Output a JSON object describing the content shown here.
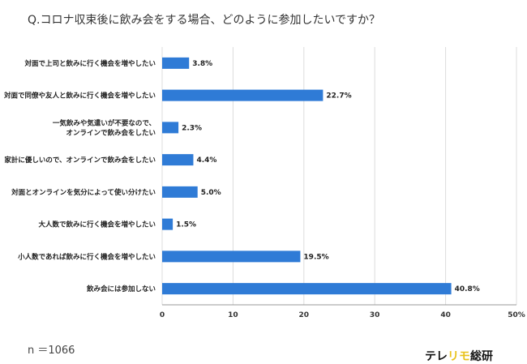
{
  "title": "Q.コロナ収束後に飲み会をする場合、どのように参加したいですか？",
  "sample_size": "n ＝1066",
  "logo": {
    "part1": "テレ",
    "part2": "リモ",
    "part3": "総研"
  },
  "colors": {
    "bar": "#2f7bd6",
    "grid": "#dddddd",
    "axis": "#999999"
  },
  "chart_data": {
    "type": "bar",
    "orientation": "horizontal",
    "categories": [
      [
        "対面で上司と飲みに行く機会を増やしたい"
      ],
      [
        "対面で同僚や友人と飲みに行く機会を増やしたい"
      ],
      [
        "一気飲みや気遣いが不要なので、",
        "オンラインで飲み会をしたい"
      ],
      [
        "家計に優しいので、オンラインで飲み会をしたい"
      ],
      [
        "対面とオンラインを気分によって使い分けたい"
      ],
      [
        "大人数で飲みに行く機会を増やしたい"
      ],
      [
        "小人数であれば飲みに行く機会を増やしたい"
      ],
      [
        "飲み会には参加しない"
      ]
    ],
    "values": [
      3.8,
      22.7,
      2.3,
      4.4,
      5.0,
      1.5,
      19.5,
      40.8
    ],
    "data_labels": [
      "3.8%",
      "22.7%",
      "2.3%",
      "4.4%",
      "5.0%",
      "1.5%",
      "19.5%",
      "40.8%"
    ],
    "xlim": [
      0,
      50
    ],
    "xticks": [
      "0",
      "10",
      "20",
      "30",
      "40",
      "50%"
    ],
    "grid": true
  }
}
